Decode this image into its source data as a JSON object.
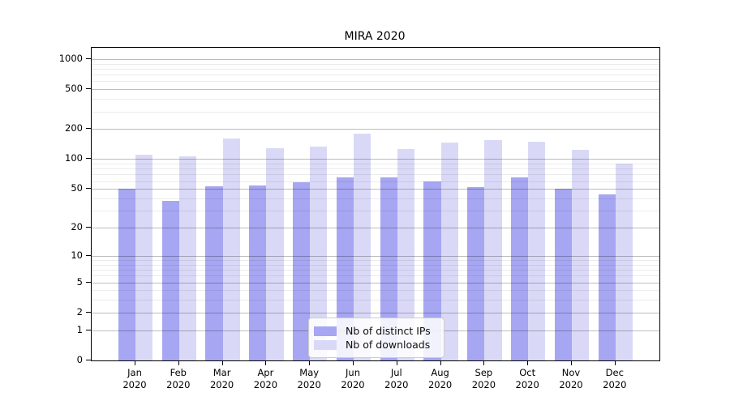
{
  "chart_data": {
    "type": "bar",
    "title": "MIRA 2020",
    "categories": [
      "Jan",
      "Feb",
      "Mar",
      "Apr",
      "May",
      "Jun",
      "Jul",
      "Aug",
      "Sep",
      "Oct",
      "Nov",
      "Dec"
    ],
    "category_sublabel": "2020",
    "series": [
      {
        "name": "Nb of distinct IPs",
        "color": "#a6a6f2",
        "values": [
          50,
          38,
          53,
          54,
          59,
          66,
          66,
          60,
          52,
          66,
          50,
          44
        ]
      },
      {
        "name": "Nb of downloads",
        "color": "#d9d9f7",
        "values": [
          111,
          106,
          160,
          128,
          133,
          180,
          127,
          146,
          156,
          149,
          123,
          91
        ]
      }
    ],
    "yscale": "log1p",
    "ylim": [
      0,
      1295
    ],
    "yticks": [
      0,
      1,
      2,
      5,
      10,
      20,
      50,
      100,
      200,
      500,
      1000
    ],
    "yminor": [
      3,
      4,
      6,
      7,
      8,
      9,
      30,
      40,
      60,
      70,
      80,
      90,
      300,
      400,
      600,
      700,
      800,
      900
    ],
    "xlabel": "",
    "ylabel": "",
    "grid": true,
    "legend_position": "lower-center",
    "grid_above_bars": true
  },
  "colors": {
    "background": "#ffffff",
    "spine": "#000000",
    "major_grid": "#bdbdbd",
    "minor_grid": "#ebebeb",
    "legend_border": "#cccccc"
  }
}
